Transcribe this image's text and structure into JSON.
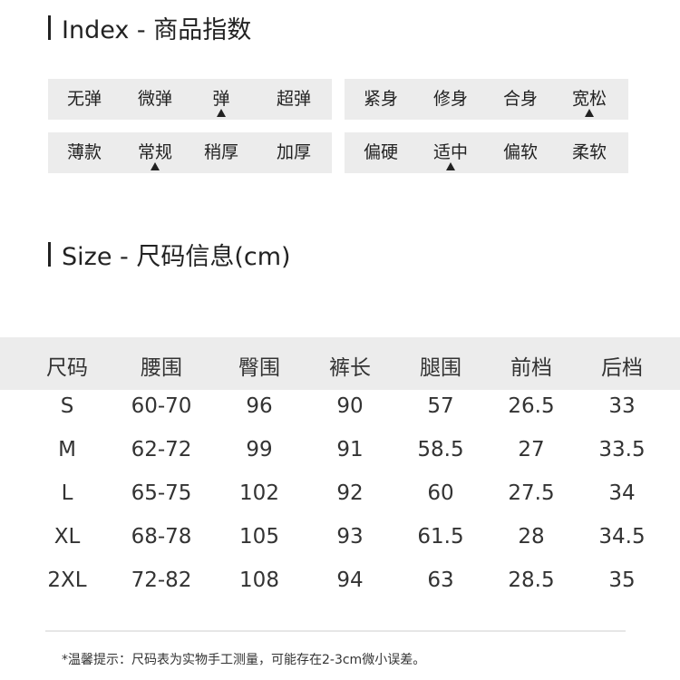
{
  "index_title": "Index - 商品指数",
  "size_title": "Size - 尺码信息(cm)",
  "index_groups": [
    {
      "options": [
        "无弹",
        "微弹",
        "弹",
        "超弹"
      ],
      "selected": 2
    },
    {
      "options": [
        "紧身",
        "修身",
        "合身",
        "宽松"
      ],
      "selected": 3
    },
    {
      "options": [
        "薄款",
        "常规",
        "稍厚",
        "加厚"
      ],
      "selected": 1
    },
    {
      "options": [
        "偏硬",
        "适中",
        "偏软",
        "柔软"
      ],
      "selected": 1
    }
  ],
  "size_table": {
    "headers": [
      "尺码",
      "腰围",
      "臀围",
      "裤长",
      "腿围",
      "前档",
      "后档"
    ],
    "rows": [
      [
        "S",
        "60-70",
        "96",
        "90",
        "57",
        "26.5",
        "33"
      ],
      [
        "M",
        "62-72",
        "99",
        "91",
        "58.5",
        "27",
        "33.5"
      ],
      [
        "L",
        "65-75",
        "102",
        "92",
        "60",
        "27.5",
        "34"
      ],
      [
        "XL",
        "68-78",
        "105",
        "93",
        "61.5",
        "28",
        "34.5"
      ],
      [
        "2XL",
        "72-82",
        "108",
        "94",
        "63",
        "28.5",
        "35"
      ]
    ]
  },
  "footnote": "*温馨提示：尺码表为实物手工测量，可能存在2-3cm微小误差。"
}
